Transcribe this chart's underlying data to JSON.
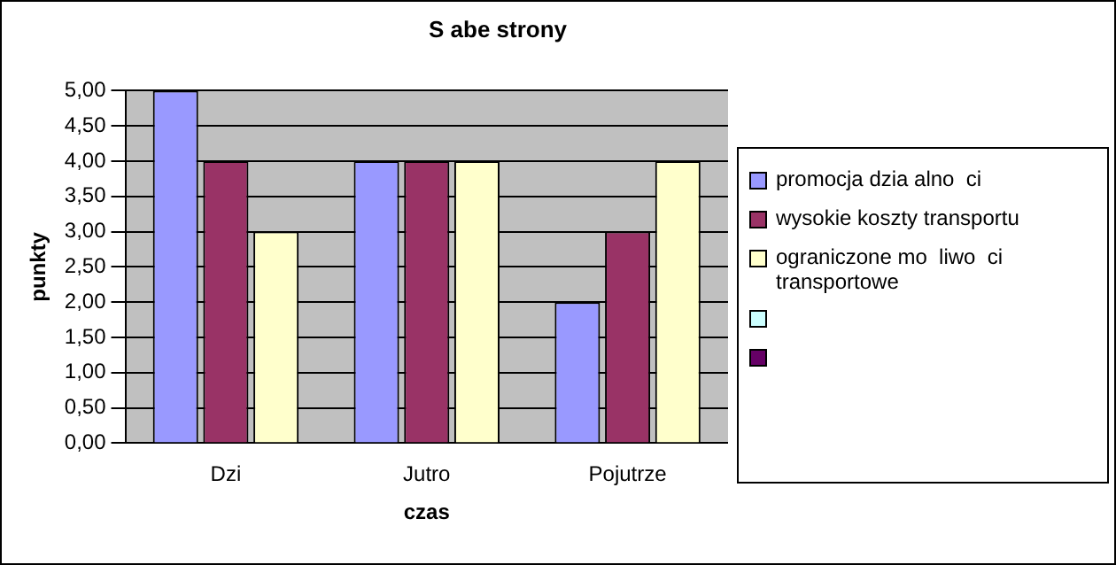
{
  "chart_data": {
    "type": "bar",
    "title": "S abe strony",
    "xlabel": "czas",
    "ylabel": "punkty",
    "categories": [
      "Dzi",
      "Jutro",
      "Pojutrze"
    ],
    "series": [
      {
        "name": "promocja dzia alno  ci",
        "color": "#9999ff",
        "values": [
          5,
          4,
          2
        ]
      },
      {
        "name": "wysokie koszty transportu",
        "color": "#993366",
        "values": [
          4,
          4,
          3
        ]
      },
      {
        "name": "ograniczone mo  liwo  ci transportowe",
        "color": "#ffffcc",
        "values": [
          3,
          4,
          4
        ]
      },
      {
        "color": "#ccffff",
        "values": [
          null,
          null,
          null
        ]
      },
      {
        "color": "#660066",
        "values": [
          null,
          null,
          null
        ]
      }
    ],
    "ylim": [
      0,
      5
    ],
    "yticks": [
      {
        "value": 0,
        "label": "0,00"
      },
      {
        "value": 0.5,
        "label": "0,50"
      },
      {
        "value": 1,
        "label": "1,00"
      },
      {
        "value": 1.5,
        "label": "1,50"
      },
      {
        "value": 2,
        "label": "2,00"
      },
      {
        "value": 2.5,
        "label": "2,50"
      },
      {
        "value": 3,
        "label": "3,00"
      },
      {
        "value": 3.5,
        "label": "3,50"
      },
      {
        "value": 4,
        "label": "4,00"
      },
      {
        "value": 4.5,
        "label": "4,50"
      },
      {
        "value": 5,
        "label": "5,00"
      }
    ],
    "grid": "y",
    "legend": "right"
  }
}
